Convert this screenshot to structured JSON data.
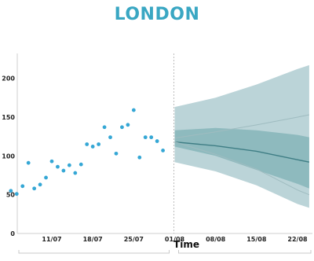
{
  "title": "LONDON",
  "chart_data": {
    "type": "scatter",
    "title": "LONDON",
    "xlabel": "Time",
    "ylabel": "",
    "ylim": [
      0,
      230
    ],
    "yticks": [
      0,
      50,
      100,
      150,
      200
    ],
    "xticks": [
      "11/07",
      "18/07",
      "25/07",
      "01/08",
      "08/08",
      "15/08",
      "22/08"
    ],
    "forecast_start": "01/08",
    "grid": false,
    "colors": {
      "points": "#35a7d5",
      "outer_band": "#b7d2d6",
      "inner_band": "#8bb8bd",
      "median_line": "#3f7e85",
      "bound_lines": "#9fbcc0",
      "title": "#3aa7c3"
    },
    "series": [
      {
        "type": "scatter",
        "x": [
          "04/07",
          "05/07",
          "06/07",
          "07/07",
          "08/07",
          "09/07",
          "10/07",
          "11/07",
          "12/07",
          "13/07",
          "14/07",
          "15/07",
          "16/07",
          "17/07",
          "18/07",
          "19/07",
          "20/07",
          "21/07",
          "22/07",
          "23/07",
          "24/07",
          "25/07",
          "26/07",
          "27/07",
          "28/07",
          "29/07",
          "30/07",
          "31/07",
          "01/08"
        ],
        "y": [
          55,
          51,
          61,
          91,
          58,
          63,
          72,
          93,
          86,
          81,
          88,
          78,
          89,
          115,
          112,
          115,
          137,
          124,
          103,
          137,
          140,
          159,
          98,
          124,
          124,
          119,
          107,
          null,
          null
        ]
      },
      {
        "type": "area",
        "name": "",
        "x": [
          "01/08",
          "08/08",
          "15/08",
          "22/08",
          "24/08"
        ],
        "upper": [
          163,
          175,
          192,
          212,
          217
        ],
        "lower": [
          92,
          80,
          62,
          38,
          33
        ]
      },
      {
        "type": "area",
        "name": "",
        "x": [
          "01/08",
          "08/08",
          "15/08",
          "22/08",
          "24/08"
        ],
        "upper": [
          133,
          136,
          133,
          127,
          124
        ],
        "lower": [
          112,
          100,
          82,
          64,
          58
        ]
      },
      {
        "type": "line",
        "name": "",
        "x": [
          "01/08",
          "08/08",
          "15/08",
          "22/08",
          "24/08"
        ],
        "y": [
          118,
          113,
          106,
          95,
          92
        ]
      },
      {
        "type": "line",
        "name": "",
        "x": [
          "01/08",
          "08/08",
          "15/08",
          "22/08",
          "24/08"
        ],
        "y": [
          123,
          131,
          140,
          150,
          153
        ]
      },
      {
        "type": "line",
        "name": "",
        "x": [
          "01/08",
          "08/08",
          "15/08",
          "22/08",
          "24/08"
        ],
        "y": [
          118,
          102,
          83,
          56,
          50
        ]
      }
    ]
  }
}
